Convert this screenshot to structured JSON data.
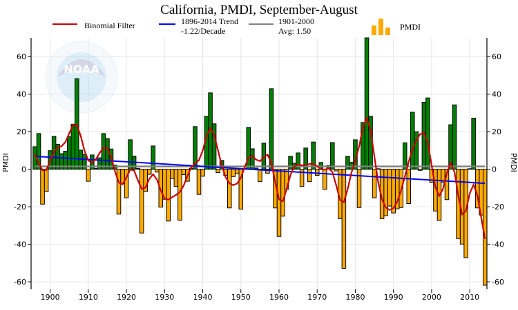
{
  "chart_data": {
    "type": "bar",
    "title": "California, PMDI, September-August",
    "ylabel": "PMDI",
    "ylabel_right": "PMDI",
    "xlim": [
      1895,
      2014.5
    ],
    "ylim": [
      -64,
      70
    ],
    "grid": true,
    "legend_placement": "top",
    "x_ticks": [
      1900,
      1910,
      1920,
      1930,
      1940,
      1950,
      1960,
      1970,
      1980,
      1990,
      2000,
      2010
    ],
    "y_ticks": [
      -60,
      -40,
      -20,
      0,
      20,
      40,
      60
    ],
    "legend": {
      "filter": "Binomial Filter",
      "trend_line1": "1896-2014 Trend",
      "trend_line2": "-1.22/Decade",
      "avg_line1": "1901-2000",
      "avg_line2": "Avg: 1.50",
      "bars": "PMDI"
    },
    "average": 1.5,
    "trend": {
      "start_year": 1896,
      "end_year": 2014,
      "start_value": 6.9,
      "slope_per_decade": -1.22
    },
    "start_year": 1896,
    "values": [
      12.0,
      19.0,
      -18.6,
      -11.9,
      9.9,
      17.5,
      13.3,
      8.3,
      9.6,
      17.3,
      24.0,
      48.3,
      10.2,
      8.0,
      -6.4,
      7.6,
      0.5,
      6.1,
      19.0,
      16.3,
      10.8,
      2.2,
      -23.9,
      -7.6,
      -15.2,
      15.7,
      7.0,
      0.5,
      -34.0,
      -11.9,
      -2.7,
      12.4,
      -1.5,
      -20.2,
      -16.0,
      -27.6,
      -4.9,
      -9.2,
      -27.2,
      -2.9,
      -6.4,
      0.5,
      22.7,
      -13.4,
      -3.7,
      28.2,
      40.7,
      24.2,
      -1.8,
      4.7,
      -3.3,
      -20.6,
      -3.9,
      -2.1,
      -21.3,
      0.5,
      22.3,
      10.9,
      0.6,
      -6.6,
      13.9,
      -2.1,
      42.9,
      -20.6,
      -35.8,
      -25.0,
      -10.7,
      6.9,
      3.2,
      8.7,
      -9.2,
      11.3,
      -6.6,
      14.5,
      -3.3,
      3.6,
      -10.7,
      2.0,
      14.2,
      -0.9,
      -26.3,
      -52.8,
      6.9,
      3.7,
      15.7,
      -20.4,
      24.9,
      70.0,
      28.2,
      -15.2,
      0.3,
      -26.3,
      -24.8,
      -19.6,
      -23.3,
      -21.1,
      -20.4,
      14.1,
      -18.3,
      30.4,
      20.0,
      -0.6,
      35.7,
      38.0,
      -6.9,
      -22.3,
      -27.3,
      -6.9,
      -16.2,
      23.7,
      34.3,
      -36.9,
      -39.9,
      -47.1,
      0.3,
      27.2,
      -20.6,
      -24.4,
      -61.8
    ],
    "colors": {
      "positive": "#008000",
      "negative": "#FFAA00",
      "filter": "#CC0000",
      "trend": "#0000FF",
      "average": "#808080"
    }
  },
  "watermark": "NOAA"
}
